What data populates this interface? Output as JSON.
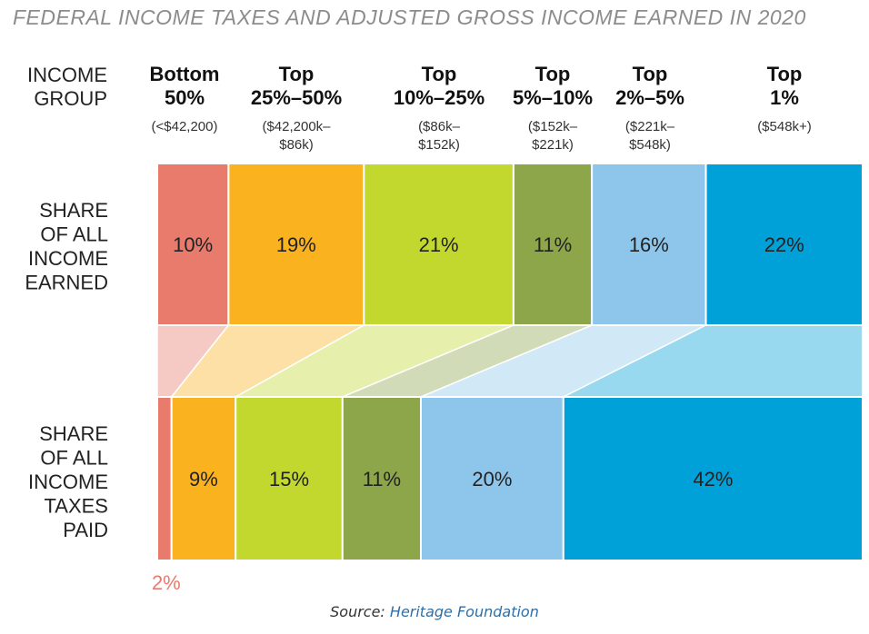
{
  "title": "FEDERAL INCOME TAXES AND ADJUSTED GROSS INCOME EARNED IN 2020",
  "source": {
    "prefix": "Source: ",
    "name": "Heritage Foundation"
  },
  "chart_data": {
    "type": "bar",
    "orientation": "horizontal stacked 100%",
    "title": "FEDERAL INCOME TAXES AND ADJUSTED GROSS INCOME EARNED IN 2020",
    "header_label": [
      "INCOME",
      "GROUP"
    ],
    "categories": [
      {
        "name_lines": [
          "Bottom",
          "50%"
        ],
        "range_lines": [
          "(<$42,200)"
        ],
        "color": "#e97b6c"
      },
      {
        "name_lines": [
          "Top",
          "25%–50%"
        ],
        "range_lines": [
          "($42,200k–",
          "$86k)"
        ],
        "color": "#fbb21f"
      },
      {
        "name_lines": [
          "Top",
          "10%–25%"
        ],
        "range_lines": [
          "($86k–",
          "$152k)"
        ],
        "color": "#c3d82f"
      },
      {
        "name_lines": [
          "Top",
          "5%–10%"
        ],
        "range_lines": [
          "($152k–",
          "$221k)"
        ],
        "color": "#8ea64a"
      },
      {
        "name_lines": [
          "Top",
          "2%–5%"
        ],
        "range_lines": [
          "($221k–",
          "$548k)"
        ],
        "color": "#8dc6ea"
      },
      {
        "name_lines": [
          "Top",
          "1%"
        ],
        "range_lines": [
          "($548k+)"
        ],
        "color": "#00a1d9"
      }
    ],
    "series": [
      {
        "name_lines": [
          "SHARE",
          "OF ALL",
          "INCOME",
          "EARNED"
        ],
        "values": [
          10,
          19,
          21,
          11,
          16,
          22
        ],
        "labels": [
          "10%",
          "19%",
          "21%",
          "11%",
          "16%",
          "22%"
        ]
      },
      {
        "name_lines": [
          "SHARE",
          "OF ALL",
          "INCOME",
          "TAXES",
          "PAID"
        ],
        "values": [
          2,
          9,
          15,
          11,
          20,
          42
        ],
        "labels": [
          "2%",
          "9%",
          "15%",
          "11%",
          "20%",
          "42%"
        ]
      }
    ],
    "value_unit": "%",
    "grid": false,
    "legend": "none"
  }
}
